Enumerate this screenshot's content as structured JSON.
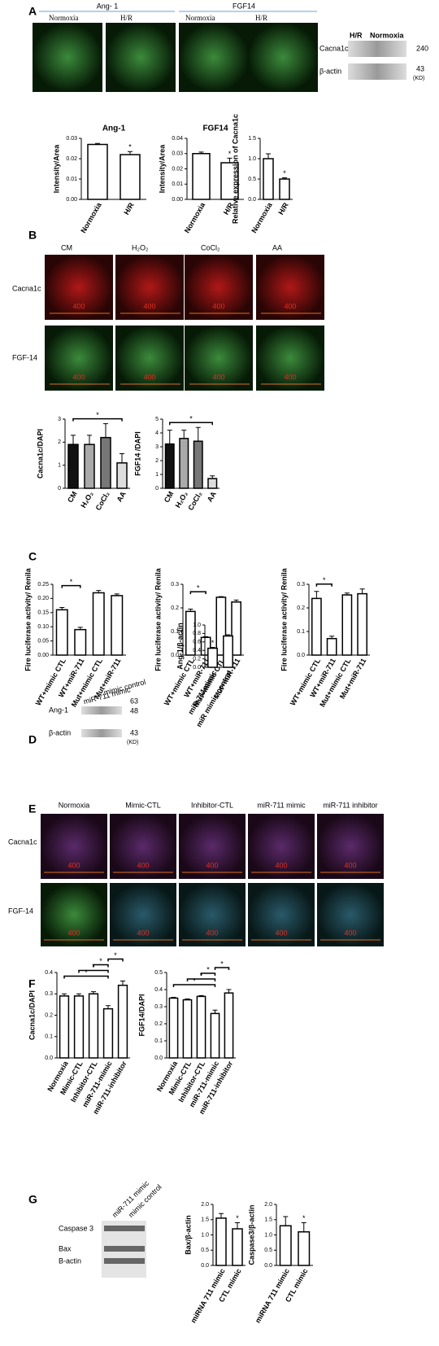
{
  "figure": {
    "panel_labels": [
      "A",
      "B",
      "C",
      "D",
      "E",
      "F",
      "G"
    ],
    "A": {
      "group_labels": [
        "Ang- 1",
        "FGF14"
      ],
      "image_labels": [
        "Normoxia",
        "H/R",
        "Normoxia",
        "H/R"
      ],
      "blot_lanes": [
        "H/R",
        "Normoxia"
      ],
      "blot_rows": [
        "Cacna1c",
        "β-actin"
      ],
      "blot_sizes": [
        "240",
        "43"
      ],
      "blot_unit": "(KD)"
    },
    "B": {
      "columns": [
        "CM",
        "H₂O₂",
        "CoCl₂",
        "AA"
      ],
      "rows": [
        "Cacna1c",
        "FGF-14"
      ],
      "scale_label": "400"
    },
    "D": {
      "blot_lanes": [
        "miR-711 mimic",
        "mimic control"
      ],
      "blot_rows": [
        "Ang-1",
        "β-actin"
      ],
      "blot_sizes": [
        "63",
        "48",
        "43"
      ],
      "blot_unit": "(KD)"
    },
    "E": {
      "columns": [
        "Normoxia",
        "Mimic-CTL",
        "Inhibitor-CTL",
        "miR-711 mimic",
        "miR-711 inhibitor"
      ],
      "rows": [
        "Cacna1c",
        "FGF-14"
      ],
      "scale_label": "400"
    },
    "G": {
      "blot_lanes": [
        "miR-711 mimic",
        "mimic control"
      ],
      "blot_rows": [
        "Caspase 3",
        "Bax",
        "B-actin"
      ]
    }
  },
  "chart_data": [
    {
      "type": "bar",
      "title": "Ang-1",
      "y_label": "Intensity/Area",
      "categories": [
        "Normoxia",
        "H/R"
      ],
      "values": [
        0.027,
        0.022
      ],
      "errors": [
        0.0005,
        0.0015
      ],
      "color": "#ffffff",
      "ylim": [
        0,
        0.03
      ],
      "yticks": [
        {
          "value": 0,
          "label": "0.00"
        },
        0.01,
        0.02,
        0.03
      ],
      "annotations": [
        "*"
      ]
    },
    {
      "type": "bar",
      "title": "FGF14",
      "y_label": "Intensity/Area",
      "categories": [
        "Normoxia",
        "H/R"
      ],
      "values": [
        0.03,
        0.024
      ],
      "errors": [
        0.001,
        0.003
      ],
      "color": "#ffffff",
      "ylim": [
        0,
        0.04
      ],
      "yticks": [
        {
          "value": 0,
          "label": "0.00"
        },
        0.01,
        0.02,
        0.03,
        0.04
      ],
      "annotations": [
        "*"
      ]
    },
    {
      "type": "bar",
      "y_label": "Relative expression of Cacna1c",
      "categories": [
        "Normoxia",
        "H/R"
      ],
      "values": [
        1.0,
        0.5
      ],
      "errors": [
        0.12,
        0.03
      ],
      "color": "#ffffff",
      "ylim": [
        0,
        1.5
      ],
      "yticks": [
        {
          "value": 0,
          "label": "0.0"
        },
        0.5,
        {
          "value": 1,
          "label": "1.0"
        },
        1.5
      ],
      "annotations": [
        "*"
      ]
    },
    {
      "type": "bar",
      "y_label": "Cacna1c/DAPI",
      "categories": [
        "CM",
        "H₂O₂",
        "CoCl₂",
        "AA"
      ],
      "values": [
        1.9,
        1.9,
        2.2,
        1.1
      ],
      "errors": [
        0.4,
        0.4,
        0.6,
        0.4
      ],
      "colors": [
        "#111111",
        "#aaaaaa",
        "#777777",
        "#dddddd"
      ],
      "ylim": [
        0,
        3
      ],
      "yticks": [
        0,
        1,
        2,
        3
      ],
      "annotations": [
        "*"
      ]
    },
    {
      "type": "bar",
      "y_label": "FGF14 /DAPI",
      "categories": [
        "CM",
        "H₂O₂",
        "CoCl₂",
        "AA"
      ],
      "values": [
        3.2,
        3.6,
        3.4,
        0.7
      ],
      "errors": [
        1.0,
        0.6,
        1.0,
        0.2
      ],
      "colors": [
        "#111111",
        "#aaaaaa",
        "#777777",
        "#dddddd"
      ],
      "ylim": [
        0,
        5
      ],
      "yticks": [
        0,
        1,
        2,
        3,
        4,
        5
      ],
      "annotations": [
        "*"
      ]
    },
    {
      "type": "bar",
      "y_label": "Fire luciferase activity/ Renila",
      "categories": [
        "WT+mimic CTL",
        "WT+miR-711",
        "Mut+mimic CTL",
        "Mut+miR-711"
      ],
      "values": [
        0.16,
        0.09,
        0.22,
        0.21
      ],
      "errors": [
        0.008,
        0.008,
        0.008,
        0.006
      ],
      "color": "#ffffff",
      "ylim": [
        0,
        0.25
      ],
      "yticks": [
        {
          "value": 0,
          "label": "0.00"
        },
        0.05,
        {
          "value": 0.1,
          "label": "0.10"
        },
        0.15,
        {
          "value": 0.2,
          "label": "0.20"
        },
        0.25
      ],
      "annotations": [
        "*"
      ]
    },
    {
      "type": "bar",
      "y_label": "Fire luciferase activity/ Renila",
      "categories": [
        "WT+mimic CTL",
        "WT+miR-711",
        "Mut+mimic CTL",
        "Mut+miR-711"
      ],
      "values": [
        0.185,
        0.075,
        0.245,
        0.225
      ],
      "errors": [
        0.01,
        0.003,
        0.003,
        0.008
      ],
      "color": "#ffffff",
      "ylim": [
        0,
        0.3
      ],
      "yticks": [
        {
          "value": 0,
          "label": "0.0"
        },
        0.1,
        0.2,
        0.3
      ],
      "annotations": [
        "*"
      ]
    },
    {
      "type": "bar",
      "y_label": "Fire luciferase activity/ Renila",
      "categories": [
        "WT+mimic CTL",
        "WT+miR-711",
        "Mut+mimic CTL",
        "Mut+miR-711"
      ],
      "values": [
        0.24,
        0.07,
        0.255,
        0.26
      ],
      "errors": [
        0.03,
        0.01,
        0.008,
        0.02
      ],
      "color": "#ffffff",
      "ylim": [
        0,
        0.3
      ],
      "yticks": [
        {
          "value": 0,
          "label": "0.0"
        },
        0.1,
        0.2,
        0.3
      ],
      "annotations": [
        "*"
      ]
    },
    {
      "type": "bar",
      "y_label": "Ang-1/β-actin",
      "categories": [
        "miR-711mimic",
        "miR mimic control"
      ],
      "values": [
        0.45,
        0.74
      ],
      "errors": [
        0.02,
        0.03
      ],
      "color": "#ffffff",
      "ylim": [
        0,
        1.0
      ],
      "yticks": [
        {
          "value": 0,
          "label": "0.0"
        },
        0.2,
        0.4,
        0.6,
        0.8,
        {
          "value": 1,
          "label": "1.0"
        }
      ],
      "annotations": [
        "*"
      ]
    },
    {
      "type": "bar",
      "y_label": "Cacna1c/DAPI",
      "categories": [
        "Normoxia",
        "Mimic-CTL",
        "Inhibitor-CTL",
        "miR-711-mimic",
        "miR-711-inhibitor"
      ],
      "values": [
        0.29,
        0.29,
        0.3,
        0.23,
        0.34
      ],
      "errors": [
        0.01,
        0.01,
        0.01,
        0.015,
        0.02
      ],
      "color": "#ffffff",
      "ylim": [
        0,
        0.4
      ],
      "yticks": [
        {
          "value": 0,
          "label": "0.0"
        },
        0.1,
        0.2,
        0.3,
        0.4
      ],
      "annotations": [
        "*",
        "*",
        "*",
        "*"
      ]
    },
    {
      "type": "bar",
      "y_label": "FGF14/DAPI",
      "categories": [
        "Normoxia",
        "Mimic-CTL",
        "Inhibitor-CTL",
        "miR-711-mimic",
        "miR-711-inhibitor"
      ],
      "values": [
        0.35,
        0.34,
        0.36,
        0.26,
        0.38
      ],
      "errors": [
        0.005,
        0.005,
        0.005,
        0.02,
        0.02
      ],
      "color": "#ffffff",
      "ylim": [
        0,
        0.5
      ],
      "yticks": [
        {
          "value": 0,
          "label": "0.0"
        },
        0.1,
        0.2,
        0.3,
        0.4,
        0.5
      ],
      "annotations": [
        "*",
        "*",
        "*",
        "*"
      ]
    },
    {
      "type": "bar",
      "y_label": "Bax/β-actin",
      "categories": [
        "miRNA 711 mimic",
        "CTL mimic"
      ],
      "values": [
        1.55,
        1.2
      ],
      "errors": [
        0.15,
        0.2
      ],
      "color": "#ffffff",
      "ylim": [
        0,
        2.0
      ],
      "yticks": [
        {
          "value": 0,
          "label": "0.0"
        },
        0.5,
        {
          "value": 1,
          "label": "1.0"
        },
        1.5,
        {
          "value": 2,
          "label": "2.0"
        }
      ],
      "annotations": [
        "*"
      ]
    },
    {
      "type": "bar",
      "y_label": "Caspase3/β-actin",
      "categories": [
        "miRNA 711 mimic",
        "CTL mimic"
      ],
      "values": [
        1.3,
        1.1
      ],
      "errors": [
        0.3,
        0.3
      ],
      "color": "#ffffff",
      "ylim": [
        0,
        2.0
      ],
      "yticks": [
        {
          "value": 0,
          "label": "0.0"
        },
        0.5,
        {
          "value": 1,
          "label": "1.0"
        },
        1.5,
        {
          "value": 2,
          "label": "2.0"
        }
      ],
      "annotations": [
        "*"
      ]
    }
  ]
}
